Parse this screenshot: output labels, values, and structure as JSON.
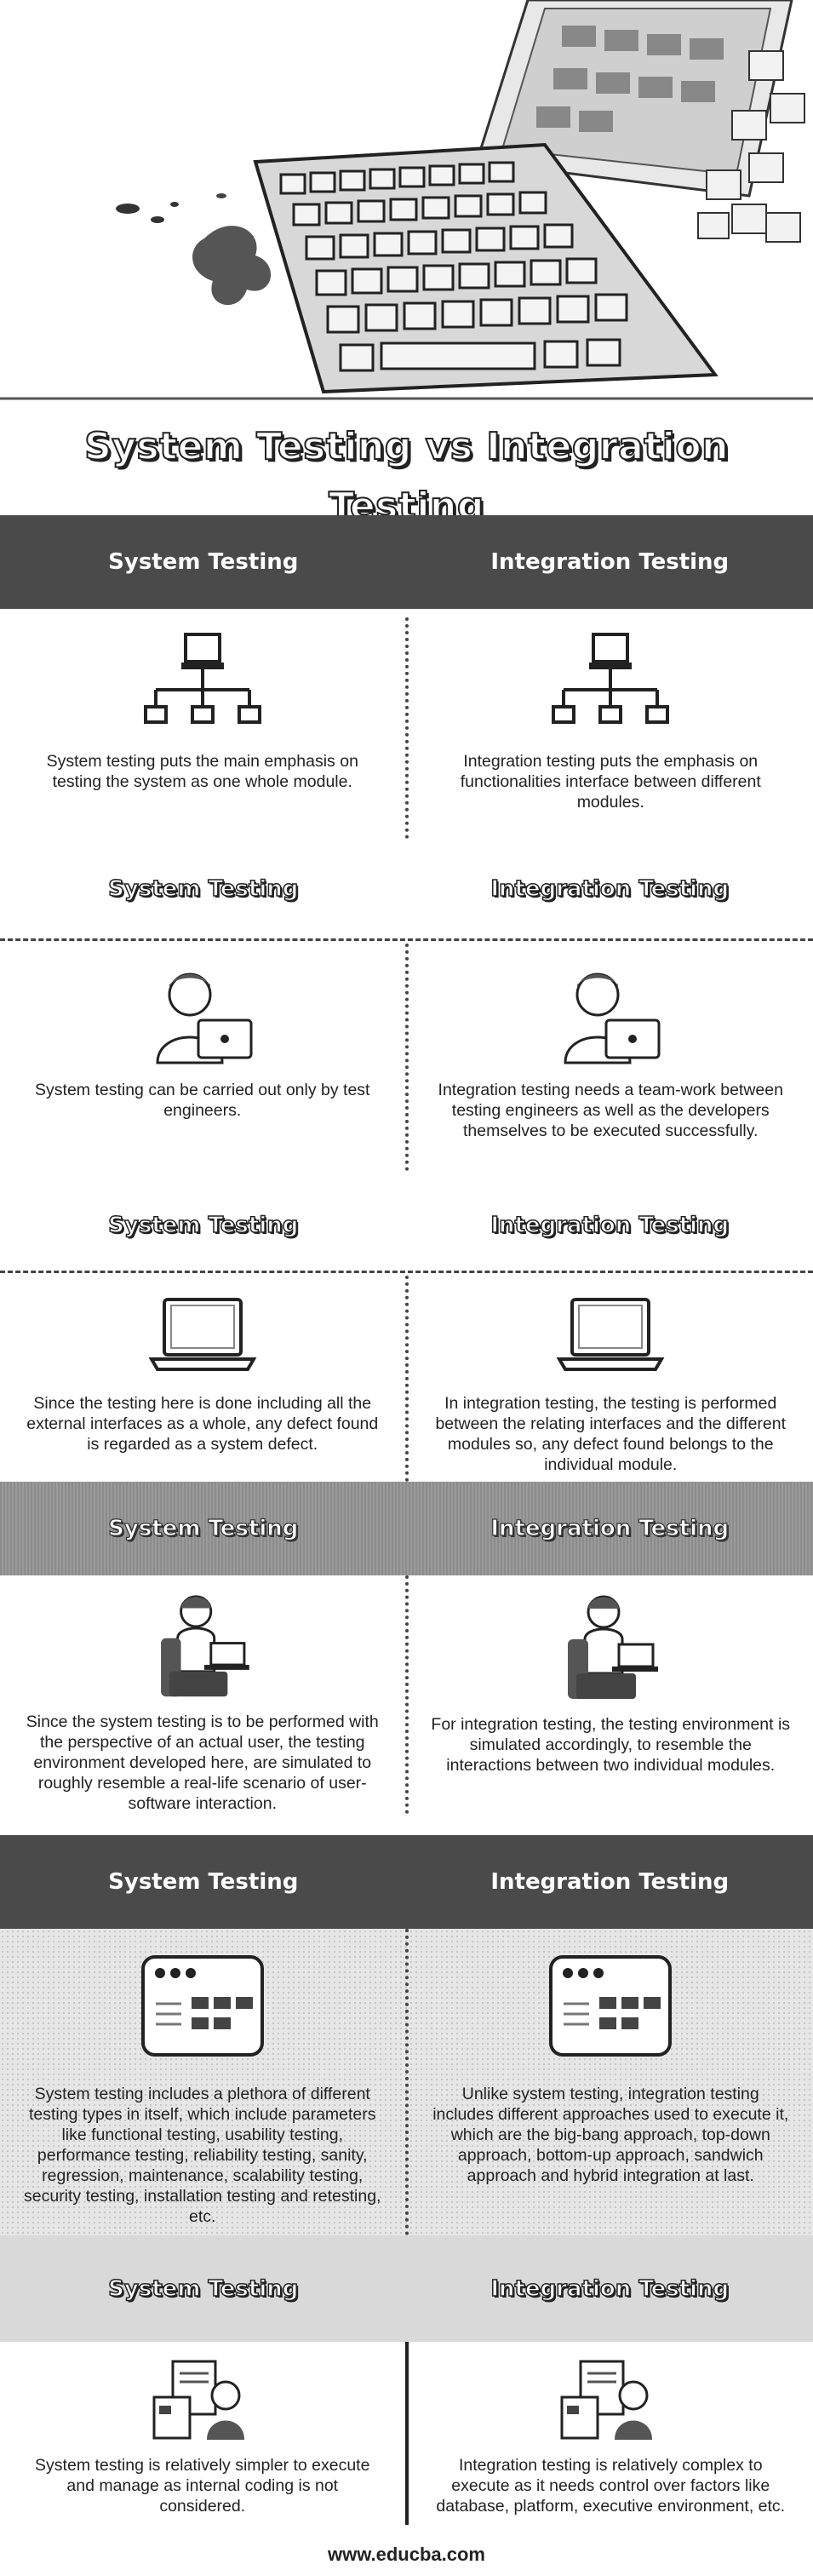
{
  "title": "System Testing vs Integration Testing",
  "column_left": "System Testing",
  "column_right": "Integration Testing",
  "rows": [
    {
      "left": "System testing puts the main emphasis on testing the system as one whole module.",
      "right": "Integration testing puts the emphasis on functionalities interface between different modules.",
      "icon": "network-icon"
    },
    {
      "left": "System testing can be carried out only by test engineers.",
      "right": "Integration testing needs a team-work between testing engineers as well as the developers themselves to be executed successfully.",
      "icon": "engineer-icon"
    },
    {
      "left": "Since the testing here is done including all the external interfaces as a whole, any defect found is regarded as a system defect.",
      "right": "In integration testing, the testing is performed between the relating interfaces and the different modules so, any defect found belongs to the individual module.",
      "icon": "laptop-icon"
    },
    {
      "left": "Since the system testing is to be performed with the perspective of an actual user, the testing environment developed here, are simulated to roughly resemble a real-life scenario of user-software interaction.",
      "right": "For integration testing, the testing environment is simulated accordingly, to resemble the interactions between two individual modules.",
      "icon": "user-at-desk-icon"
    },
    {
      "left": "System testing includes a plethora of different testing types in itself, which include parameters like functional testing, usability testing, performance testing, reliability testing, sanity, regression, maintenance, scalability testing, security testing, installation testing and retesting, etc.",
      "right": "Unlike system testing, integration testing includes different approaches used to execute it, which are the big-bang approach, top-down approach, bottom-up approach, sandwich approach and hybrid integration at last.",
      "icon": "browser-window-icon"
    },
    {
      "left": "System testing is relatively simpler to execute and manage as internal coding is not considered.",
      "right": "Integration testing is relatively complex to execute as it needs control over factors like database, platform, executive environment, etc.",
      "icon": "documents-person-icon"
    }
  ],
  "footer": "www.educba.com"
}
